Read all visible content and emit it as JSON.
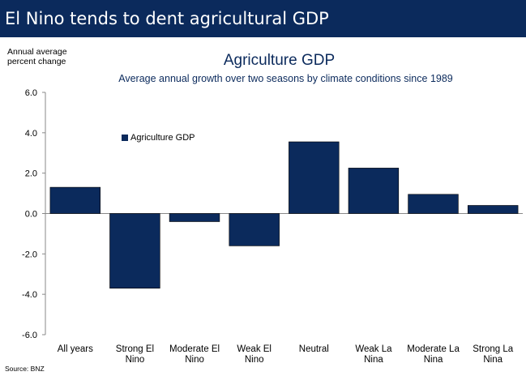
{
  "banner": {
    "title": "El Nino tends to dent agricultural GDP"
  },
  "source": "Source: BNZ",
  "colors": {
    "banner_bg": "#0b2a5c",
    "bar": "#0b2a5c",
    "title_text": "#0b2a5c"
  },
  "chart_data": {
    "type": "bar",
    "title": "Agriculture GDP",
    "subtitle": "Average annual growth over two seasons by climate conditions since 1989",
    "ylabel": "Annual average\npercent change",
    "xlabel": "",
    "ylim": [
      -6.0,
      6.0
    ],
    "yticks": [
      "6.0",
      "4.0",
      "2.0",
      "0.0",
      "-2.0",
      "-4.0",
      "-6.0"
    ],
    "ytick_values": [
      6,
      4,
      2,
      0,
      -2,
      -4,
      -6
    ],
    "categories": [
      [
        "All years"
      ],
      [
        "Strong El",
        "Nino"
      ],
      [
        "Moderate El",
        "Nino"
      ],
      [
        "Weak El",
        "Nino"
      ],
      [
        "Neutral"
      ],
      [
        "Weak La",
        "Nina"
      ],
      [
        "Moderate La",
        "Nina"
      ],
      [
        "Strong La",
        "Nina"
      ]
    ],
    "series": [
      {
        "name": "Agriculture GDP",
        "values": [
          1.3,
          -3.7,
          -0.4,
          -1.6,
          3.55,
          2.25,
          0.95,
          0.4
        ]
      }
    ],
    "legend": "upper-left",
    "grid": false
  }
}
